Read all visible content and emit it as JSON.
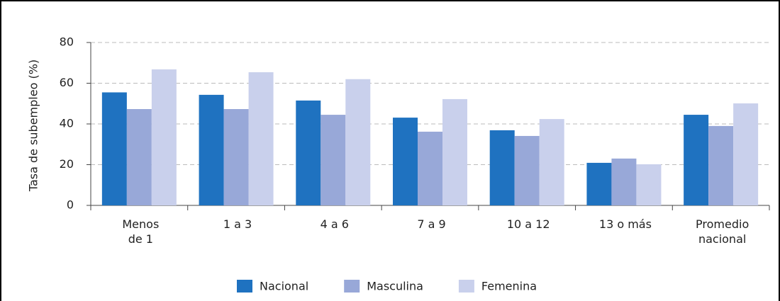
{
  "chart_data": {
    "type": "bar",
    "y_label": "Tasa de subempleo (%)",
    "categories": [
      "Menos\nde 1",
      "1 a 3",
      "4 a 6",
      "7 a 9",
      "10 a 12",
      "13 o más",
      "Promedio\nnacional"
    ],
    "series": [
      {
        "name": "Nacional",
        "color": "#1f72c0",
        "values": [
          55.5,
          54.3,
          51.5,
          43.1,
          36.9,
          20.9,
          44.5
        ]
      },
      {
        "name": "Masculina",
        "color": "#98a8d8",
        "values": [
          47.3,
          47.3,
          44.5,
          36.2,
          34.1,
          23,
          39
        ]
      },
      {
        "name": "Femenina",
        "color": "#c9d0ec",
        "values": [
          66.8,
          65.4,
          62,
          52.2,
          42.4,
          20.2,
          50.1
        ]
      }
    ],
    "ylim": [
      0,
      80
    ],
    "yticks": [
      0,
      20,
      40,
      60,
      80
    ],
    "grid": true
  }
}
